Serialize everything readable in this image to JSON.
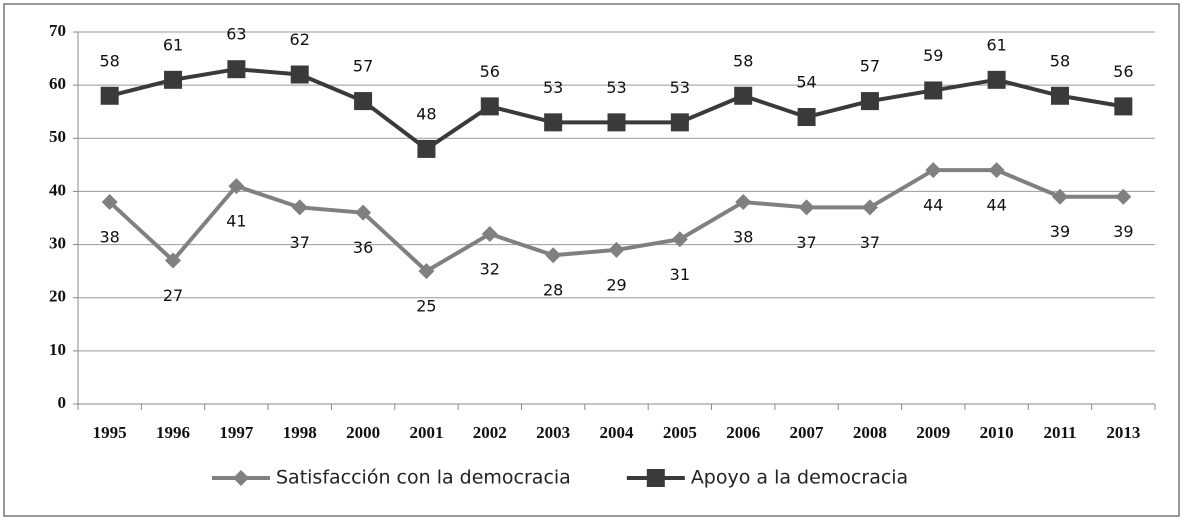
{
  "chart_data": {
    "type": "line",
    "categories": [
      "1995",
      "1996",
      "1997",
      "1998",
      "2000",
      "2001",
      "2002",
      "2003",
      "2004",
      "2005",
      "2006",
      "2007",
      "2008",
      "2009",
      "2010",
      "2011",
      "2013"
    ],
    "series": [
      {
        "name": "Satisfacción con la democracia",
        "color": "#808080",
        "marker": "diamond",
        "label_position": "below",
        "values": [
          38,
          27,
          41,
          37,
          36,
          25,
          32,
          28,
          29,
          31,
          38,
          37,
          37,
          44,
          44,
          39,
          39
        ]
      },
      {
        "name": "Apoyo a la democracia",
        "color": "#3a3a3a",
        "marker": "square",
        "label_position": "above",
        "values": [
          58,
          61,
          63,
          62,
          57,
          48,
          56,
          53,
          53,
          53,
          58,
          54,
          57,
          59,
          61,
          58,
          56
        ]
      }
    ],
    "ylim": [
      0,
      70
    ],
    "yticks": [
      0,
      10,
      20,
      30,
      40,
      50,
      60,
      70
    ],
    "grid": true,
    "legend": "bottom"
  }
}
